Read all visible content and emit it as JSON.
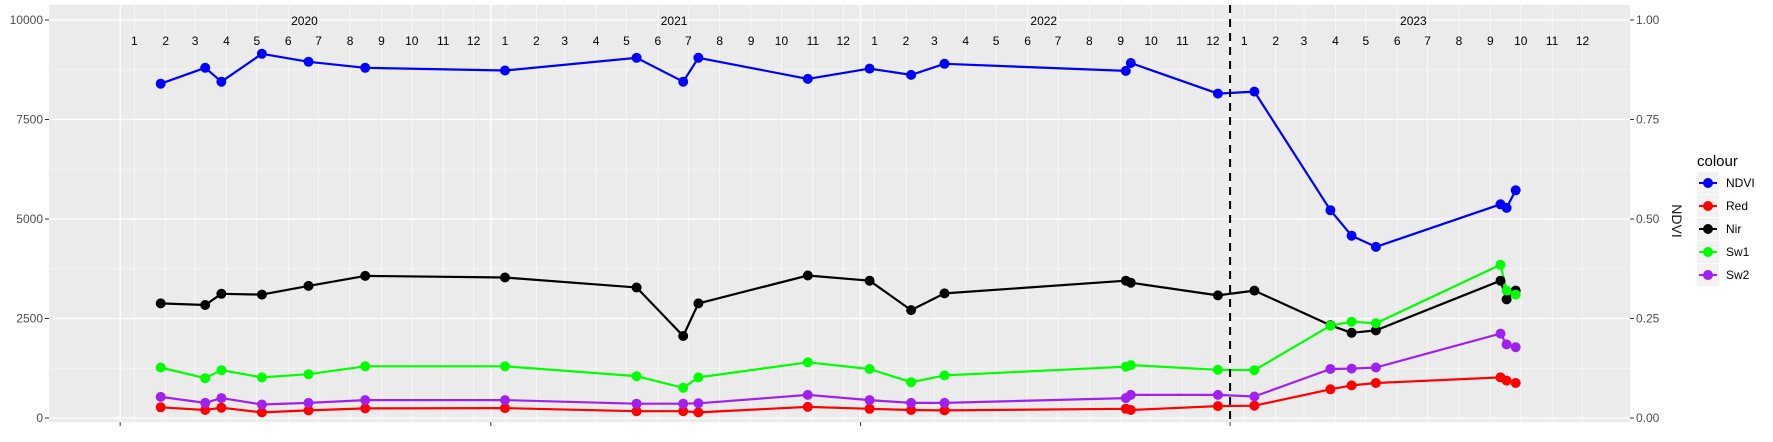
{
  "chart_data": {
    "type": "line",
    "title": "",
    "xlabel": "",
    "ylabel_left": "",
    "ylabel_right": "NDVI",
    "ylim_left": [
      0,
      10000
    ],
    "ylim_right": [
      0,
      1
    ],
    "y_ticks_left": [
      "0",
      "2500",
      "5000",
      "7500",
      "10000"
    ],
    "y_ticks_right": [
      "0.00",
      "0.25",
      "0.50",
      "0.75",
      "1.00"
    ],
    "years": [
      "2020",
      "2021",
      "2022",
      "2023"
    ],
    "month_labels": [
      "1",
      "2",
      "3",
      "4",
      "5",
      "6",
      "7",
      "8",
      "9",
      "10",
      "11",
      "12"
    ],
    "x_start": "2020-01",
    "x_end": "2023-12",
    "vline_date": "2023-01",
    "grid": true,
    "legend": {
      "title": "colour",
      "placement": "right",
      "items": [
        "NDVI",
        "Red",
        "Nir",
        "Sw1",
        "Sw2"
      ]
    },
    "series": [
      {
        "name": "NDVI",
        "axis": "right",
        "color": "#0000FF",
        "x": [
          "2020-02-10",
          "2020-03-25",
          "2020-04-10",
          "2020-05-20",
          "2020-07-05",
          "2020-08-30",
          "2021-01-15",
          "2021-05-25",
          "2021-07-10",
          "2021-07-25",
          "2021-11-10",
          "2022-01-10",
          "2022-02-20",
          "2022-03-25",
          "2022-09-20",
          "2022-09-25",
          "2022-12-20",
          "2023-01-25",
          "2023-04-10",
          "2023-05-01",
          "2023-05-25",
          "2023-09-25",
          "2023-10-01",
          "2023-10-10"
        ],
        "values": [
          0.84,
          0.88,
          0.845,
          0.915,
          0.895,
          0.88,
          0.873,
          0.905,
          0.845,
          0.905,
          0.852,
          0.878,
          0.862,
          0.89,
          0.872,
          0.892,
          0.815,
          0.82,
          0.522,
          0.458,
          0.43,
          0.537,
          0.528,
          0.572
        ]
      },
      {
        "name": "Red",
        "axis": "left",
        "color": "#FF0000",
        "x": [
          "2020-02-10",
          "2020-03-25",
          "2020-04-10",
          "2020-05-20",
          "2020-07-05",
          "2020-08-30",
          "2021-01-15",
          "2021-05-25",
          "2021-07-10",
          "2021-07-25",
          "2021-11-10",
          "2022-01-10",
          "2022-02-20",
          "2022-03-25",
          "2022-09-20",
          "2022-09-25",
          "2022-12-20",
          "2023-01-25",
          "2023-04-10",
          "2023-05-01",
          "2023-05-25",
          "2023-09-25",
          "2023-10-01",
          "2023-10-10"
        ],
        "values": [
          270,
          200,
          260,
          140,
          190,
          240,
          250,
          170,
          170,
          140,
          280,
          230,
          200,
          190,
          230,
          200,
          300,
          310,
          720,
          820,
          880,
          1020,
          940,
          880
        ]
      },
      {
        "name": "Nir",
        "axis": "left",
        "color": "#000000",
        "x": [
          "2020-02-10",
          "2020-03-25",
          "2020-04-10",
          "2020-05-20",
          "2020-07-05",
          "2020-08-30",
          "2021-01-15",
          "2021-05-25",
          "2021-07-10",
          "2021-07-25",
          "2021-11-10",
          "2022-01-10",
          "2022-02-20",
          "2022-03-25",
          "2022-09-20",
          "2022-09-25",
          "2022-12-20",
          "2023-01-25",
          "2023-04-10",
          "2023-05-01",
          "2023-05-25",
          "2023-09-25",
          "2023-10-01",
          "2023-10-10"
        ],
        "values": [
          2880,
          2840,
          3120,
          3100,
          3320,
          3570,
          3530,
          3280,
          2060,
          2880,
          3580,
          3450,
          2710,
          3130,
          3450,
          3400,
          3080,
          3200,
          2330,
          2140,
          2200,
          3450,
          2980,
          3200
        ]
      },
      {
        "name": "Sw1",
        "axis": "left",
        "color": "#00FF00",
        "x": [
          "2020-02-10",
          "2020-03-25",
          "2020-04-10",
          "2020-05-20",
          "2020-07-05",
          "2020-08-30",
          "2021-01-15",
          "2021-05-25",
          "2021-07-10",
          "2021-07-25",
          "2021-11-10",
          "2022-01-10",
          "2022-02-20",
          "2022-03-25",
          "2022-09-20",
          "2022-09-25",
          "2022-12-20",
          "2023-01-25",
          "2023-04-10",
          "2023-05-01",
          "2023-05-25",
          "2023-09-25",
          "2023-10-01",
          "2023-10-10"
        ],
        "values": [
          1270,
          1000,
          1200,
          1020,
          1100,
          1300,
          1300,
          1050,
          760,
          1020,
          1400,
          1230,
          900,
          1070,
          1290,
          1330,
          1210,
          1200,
          2320,
          2420,
          2380,
          3850,
          3200,
          3100
        ]
      },
      {
        "name": "Sw2",
        "axis": "left",
        "color": "#A020F0",
        "x": [
          "2020-02-10",
          "2020-03-25",
          "2020-04-10",
          "2020-05-20",
          "2020-07-05",
          "2020-08-30",
          "2021-01-15",
          "2021-05-25",
          "2021-07-10",
          "2021-07-25",
          "2021-11-10",
          "2022-01-10",
          "2022-02-20",
          "2022-03-25",
          "2022-09-20",
          "2022-09-25",
          "2022-12-20",
          "2023-01-25",
          "2023-04-10",
          "2023-05-01",
          "2023-05-25",
          "2023-09-25",
          "2023-10-01",
          "2023-10-10"
        ],
        "values": [
          530,
          380,
          500,
          340,
          380,
          450,
          450,
          360,
          360,
          370,
          580,
          450,
          380,
          380,
          500,
          580,
          580,
          540,
          1230,
          1240,
          1270,
          2120,
          1850,
          1780
        ]
      }
    ]
  }
}
